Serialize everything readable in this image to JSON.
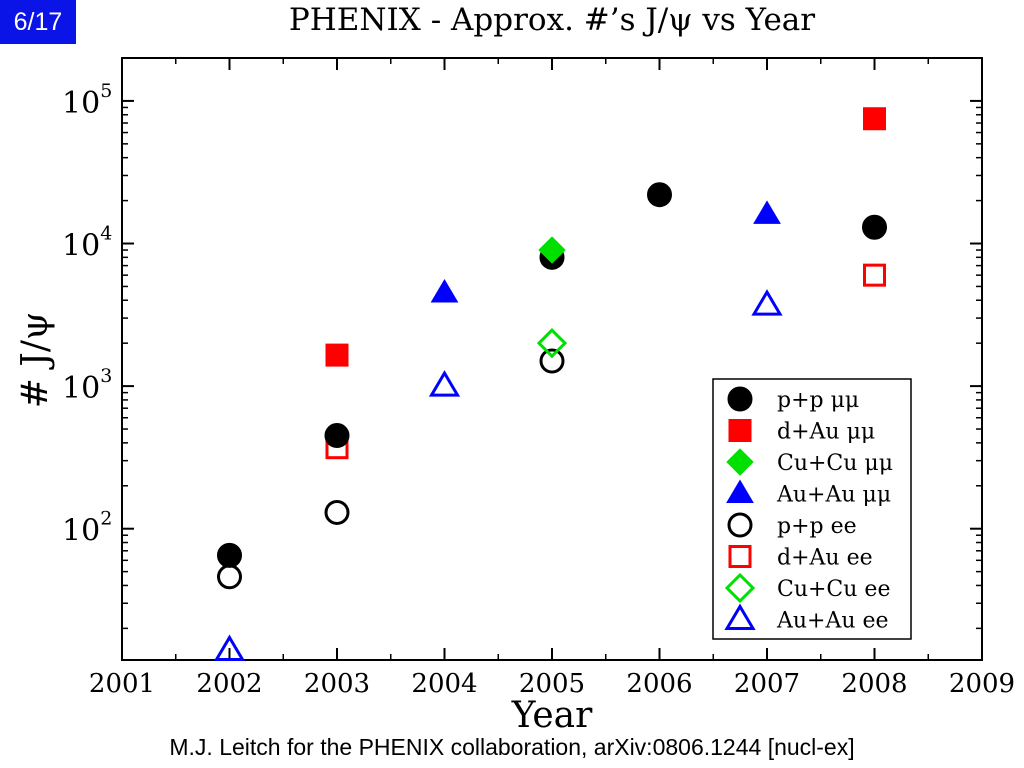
{
  "slide": {
    "page_label": "6/17",
    "citation": "M.J. Leitch for the PHENIX collaboration, arXiv:0806.1244 [nucl-ex]"
  },
  "chart_data": {
    "type": "scatter",
    "title": "PHENIX - Approx. #’s J/ψ vs Year",
    "xlabel": "Year",
    "ylabel": "# J/ψ",
    "x_ticks": [
      "2001",
      "2002",
      "2003",
      "2004",
      "2005",
      "2006",
      "2007",
      "2008",
      "2009"
    ],
    "xlim": [
      2001,
      2009
    ],
    "y_scale": "log",
    "ylim": [
      12,
      200000
    ],
    "y_ticks": [
      {
        "value": 100,
        "base": "10",
        "exp": "2"
      },
      {
        "value": 1000,
        "base": "10",
        "exp": "3"
      },
      {
        "value": 10000,
        "base": "10",
        "exp": "4"
      },
      {
        "value": 100000,
        "base": "10",
        "exp": "5"
      }
    ],
    "grid": false,
    "legend_position": "bottom-right",
    "series": [
      {
        "name": "p+p μμ",
        "marker": "circle",
        "filled": true,
        "color": "#000000",
        "points": [
          {
            "x": 2002,
            "y": 65
          },
          {
            "x": 2003,
            "y": 450
          },
          {
            "x": 2005,
            "y": 8000
          },
          {
            "x": 2006,
            "y": 22000
          },
          {
            "x": 2008,
            "y": 13000
          }
        ]
      },
      {
        "name": "d+Au μμ",
        "marker": "square",
        "filled": true,
        "color": "#ff0000",
        "points": [
          {
            "x": 2003,
            "y": 1650
          },
          {
            "x": 2008,
            "y": 75000
          }
        ]
      },
      {
        "name": "Cu+Cu μμ",
        "marker": "diamond",
        "filled": true,
        "color": "#00e000",
        "points": [
          {
            "x": 2005,
            "y": 9000
          }
        ]
      },
      {
        "name": "Au+Au μμ",
        "marker": "triangle",
        "filled": true,
        "color": "#0000ff",
        "points": [
          {
            "x": 2004,
            "y": 4500
          },
          {
            "x": 2007,
            "y": 16000
          }
        ]
      },
      {
        "name": "p+p ee",
        "marker": "circle",
        "filled": false,
        "color": "#000000",
        "points": [
          {
            "x": 2002,
            "y": 46
          },
          {
            "x": 2003,
            "y": 130
          },
          {
            "x": 2005,
            "y": 1500
          }
        ]
      },
      {
        "name": "d+Au ee",
        "marker": "square",
        "filled": false,
        "color": "#ff0000",
        "points": [
          {
            "x": 2003,
            "y": 370
          },
          {
            "x": 2008,
            "y": 6000
          }
        ]
      },
      {
        "name": "Cu+Cu ee",
        "marker": "diamond",
        "filled": false,
        "color": "#00e000",
        "points": [
          {
            "x": 2005,
            "y": 2000
          }
        ]
      },
      {
        "name": "Au+Au ee",
        "marker": "triangle",
        "filled": false,
        "color": "#0000ff",
        "points": [
          {
            "x": 2002,
            "y": 14
          },
          {
            "x": 2004,
            "y": 1000
          },
          {
            "x": 2007,
            "y": 3700
          }
        ]
      }
    ]
  }
}
